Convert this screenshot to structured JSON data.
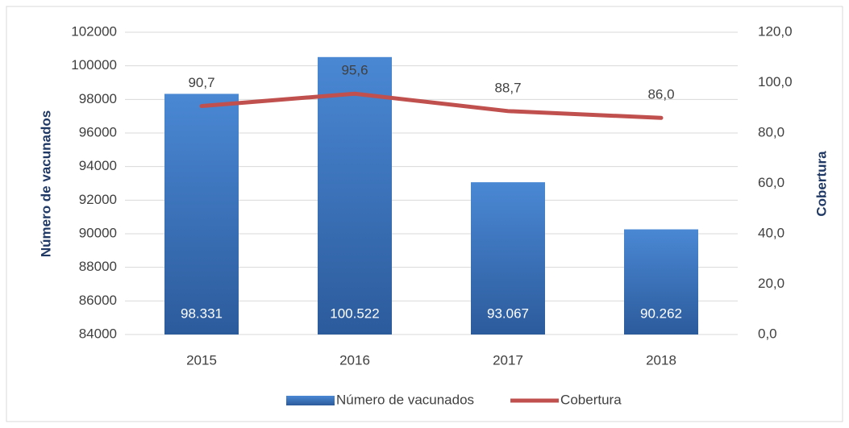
{
  "chart_data": {
    "type": "bar",
    "categories": [
      "2015",
      "2016",
      "2017",
      "2018"
    ],
    "series": [
      {
        "name": "Número de vacunados",
        "type": "bar",
        "color": "#3a72bd",
        "axis": "y",
        "values": [
          98331,
          100522,
          93067,
          90262
        ],
        "value_labels": [
          "98.331",
          "100.522",
          "93.067",
          "90.262"
        ]
      },
      {
        "name": "Cobertura",
        "type": "line",
        "color": "#c0504d",
        "axis": "y2",
        "values": [
          90.7,
          95.6,
          88.7,
          86.0
        ],
        "value_labels": [
          "90,7",
          "95,6",
          "88,7",
          "86,0"
        ]
      }
    ],
    "ylabel": "Número de vacunados",
    "y2label": "Cobertura",
    "ylim": [
      84000,
      102000
    ],
    "yticks": [
      84000,
      86000,
      88000,
      90000,
      92000,
      94000,
      96000,
      98000,
      100000,
      102000
    ],
    "y2lim": [
      0,
      120
    ],
    "y2ticks": [
      {
        "value": 0,
        "label": "0,0"
      },
      {
        "value": 20,
        "label": "20,0"
      },
      {
        "value": 40,
        "label": "40,0"
      },
      {
        "value": 60,
        "label": "60,0"
      },
      {
        "value": 80,
        "label": "80,0"
      },
      {
        "value": 100,
        "label": "100,0"
      },
      {
        "value": 120,
        "label": "120,0"
      }
    ],
    "grid": true,
    "legend": "bottom"
  }
}
